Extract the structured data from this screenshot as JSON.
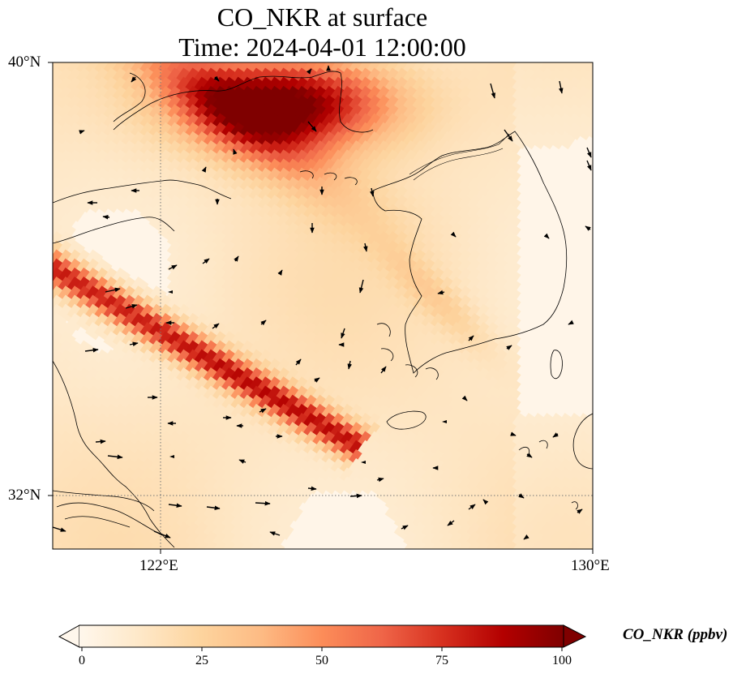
{
  "title": "CO_NKR at surface",
  "subtitle": "Time: 2024-04-01 12:00:00",
  "map": {
    "lon_range": [
      119.5,
      130
    ],
    "lat_range": [
      31,
      40
    ],
    "lon_ticks": [
      "122°E",
      "130°E"
    ],
    "lat_ticks": [
      "40°N",
      "32°N"
    ],
    "gridlines": "dotted at 122°E and 32°N",
    "field": "CO_NKR",
    "field_units": "ppbv",
    "colormap": "OrRd",
    "colormap_stops": [
      "#fff7ec",
      "#fee8c8",
      "#fdd49e",
      "#fdbb84",
      "#fc8d59",
      "#ef6548",
      "#d7301f",
      "#b30000",
      "#7f0000"
    ],
    "vmin": 0,
    "vmax": 100,
    "plumes": [
      {
        "name": "Bohai plume",
        "peak_ppbv": 100
      },
      {
        "name": "Yellow Sea band",
        "peak_ppbv": 80
      }
    ],
    "wind_vectors": "black arrows"
  },
  "colorbar": {
    "label": "CO_NKR (ppbv)",
    "ticks": [
      "0",
      "25",
      "50",
      "75",
      "100"
    ],
    "extend": "both"
  }
}
